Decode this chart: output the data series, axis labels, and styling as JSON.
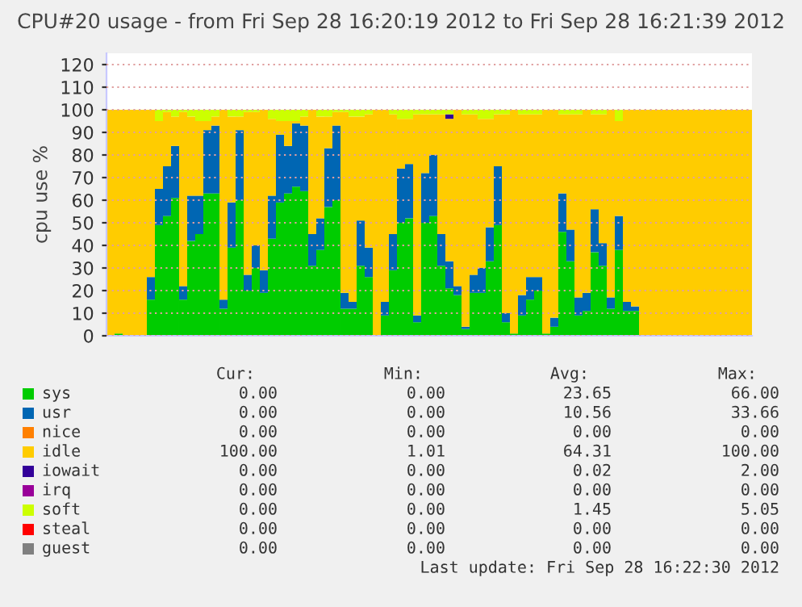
{
  "chart_data": {
    "type": "bar",
    "stacked": true,
    "title": "CPU#20 usage - from Fri Sep 28 16:20:19 2012 to Fri Sep 28 16:21:39 2012",
    "ylabel": "cpu use %",
    "categories": [
      null,
      null,
      null,
      null,
      null,
      null,
      null,
      null,
      null,
      null,
      null,
      null,
      null,
      null,
      null,
      null,
      null,
      null,
      null,
      null,
      null,
      null,
      null,
      null,
      null,
      null,
      null,
      null,
      null,
      null,
      null,
      null,
      null,
      null,
      null,
      null,
      null,
      null,
      null,
      null,
      null,
      null,
      null,
      null,
      null,
      null,
      null,
      null,
      null,
      null,
      null,
      null,
      null,
      null,
      null,
      null,
      null,
      null,
      null,
      null,
      null,
      null,
      null,
      null,
      null,
      null,
      null,
      null,
      null,
      null,
      null,
      null,
      null,
      null,
      null,
      null,
      null,
      null,
      null,
      null
    ],
    "series": [
      {
        "name": "sys",
        "color": "#00cc00",
        "values": [
          0,
          1,
          0,
          0,
          0,
          16,
          49,
          53,
          61,
          16,
          42,
          45,
          63,
          63,
          12,
          39,
          60,
          20,
          30,
          19,
          43,
          59,
          63,
          66,
          64,
          31,
          38,
          57,
          60,
          12,
          12,
          31,
          26,
          0,
          9,
          29,
          50,
          52,
          6,
          50,
          53,
          31,
          21,
          18,
          3,
          19,
          19,
          33,
          49,
          6,
          1,
          9,
          16,
          20,
          1,
          4,
          46,
          33,
          9,
          11,
          37,
          31,
          12,
          38,
          11,
          11,
          0,
          0,
          0,
          0,
          0,
          0,
          0,
          0,
          0,
          0,
          0,
          0,
          0,
          0
        ]
      },
      {
        "name": "usr",
        "color": "#0066b3",
        "values": [
          0,
          0,
          0,
          0,
          0,
          10,
          16,
          22,
          23,
          6,
          20,
          17,
          28,
          30,
          4,
          20,
          31,
          7,
          10,
          10,
          19,
          30,
          21,
          28,
          29,
          14,
          14,
          26,
          33,
          7,
          3,
          20,
          13,
          0,
          6,
          16,
          24,
          24,
          3,
          22,
          27,
          14,
          12,
          4,
          1,
          8,
          11,
          15,
          26,
          4,
          0,
          9,
          10,
          6,
          0,
          4,
          17,
          14,
          8,
          8,
          19,
          10,
          5,
          15,
          4,
          2,
          0,
          0,
          0,
          0,
          0,
          0,
          0,
          0,
          0,
          0,
          0,
          0,
          0,
          0
        ]
      },
      {
        "name": "nice",
        "color": "#ff8000",
        "values": [
          0,
          0,
          0,
          0,
          0,
          0,
          0,
          0,
          0,
          0,
          0,
          0,
          0,
          0,
          0,
          0,
          0,
          0,
          0,
          0,
          0,
          0,
          0,
          0,
          0,
          0,
          0,
          0,
          0,
          0,
          0,
          0,
          0,
          0,
          0,
          0,
          0,
          0,
          0,
          0,
          0,
          0,
          0,
          0,
          0,
          0,
          0,
          0,
          0,
          0,
          0,
          0,
          0,
          0,
          0,
          0,
          0,
          0,
          0,
          0,
          0,
          0,
          0,
          0,
          0,
          0,
          0,
          0,
          0,
          0,
          0,
          0,
          0,
          0,
          0,
          0,
          0,
          0,
          0,
          0
        ]
      },
      {
        "name": "idle",
        "color": "#ffcc00",
        "values": [
          100,
          99,
          100,
          100,
          100,
          74,
          30,
          24,
          13,
          77,
          35,
          33,
          4,
          4,
          84,
          38,
          6,
          72,
          59,
          71,
          34,
          6,
          11,
          1,
          4,
          55,
          45,
          14,
          6,
          80,
          82,
          46,
          59,
          100,
          85,
          53,
          22,
          20,
          89,
          26,
          18,
          53,
          63,
          78,
          94,
          71,
          66,
          48,
          23,
          88,
          99,
          80,
          72,
          72,
          99,
          92,
          35,
          51,
          81,
          81,
          42,
          57,
          83,
          42,
          85,
          87,
          100,
          100,
          100,
          100,
          100,
          100,
          100,
          100,
          100,
          100,
          100,
          100,
          100,
          100
        ]
      },
      {
        "name": "iowait",
        "color": "#330099",
        "values": [
          0,
          0,
          0,
          0,
          0,
          0,
          0,
          0,
          0,
          0,
          0,
          0,
          0,
          0,
          0,
          0,
          0,
          0,
          0,
          0,
          0,
          0,
          0,
          0,
          0,
          0,
          0,
          0,
          0,
          0,
          0,
          0,
          0,
          0,
          0,
          0,
          0,
          0,
          0,
          0,
          0,
          0,
          2,
          0,
          0,
          0,
          0,
          0,
          0,
          0,
          0,
          0,
          0,
          0,
          0,
          0,
          0,
          0,
          0,
          0,
          0,
          0,
          0,
          0,
          0,
          0,
          0,
          0,
          0,
          0,
          0,
          0,
          0,
          0,
          0,
          0,
          0,
          0,
          0,
          0
        ]
      },
      {
        "name": "irq",
        "color": "#990099",
        "values": [
          0,
          0,
          0,
          0,
          0,
          0,
          0,
          0,
          0,
          0,
          0,
          0,
          0,
          0,
          0,
          0,
          0,
          0,
          0,
          0,
          0,
          0,
          0,
          0,
          0,
          0,
          0,
          0,
          0,
          0,
          0,
          0,
          0,
          0,
          0,
          0,
          0,
          0,
          0,
          0,
          0,
          0,
          0,
          0,
          0,
          0,
          0,
          0,
          0,
          0,
          0,
          0,
          0,
          0,
          0,
          0,
          0,
          0,
          0,
          0,
          0,
          0,
          0,
          0,
          0,
          0,
          0,
          0,
          0,
          0,
          0,
          0,
          0,
          0,
          0,
          0,
          0,
          0,
          0,
          0
        ]
      },
      {
        "name": "soft",
        "color": "#ccff00",
        "values": [
          0,
          0,
          0,
          0,
          0,
          0,
          5,
          1,
          3,
          1,
          3,
          5,
          5,
          3,
          0,
          3,
          3,
          1,
          1,
          0,
          4,
          5,
          5,
          5,
          3,
          0,
          3,
          3,
          1,
          1,
          3,
          3,
          2,
          0,
          0,
          2,
          4,
          4,
          2,
          2,
          2,
          2,
          2,
          0,
          2,
          2,
          4,
          4,
          2,
          2,
          0,
          2,
          2,
          2,
          0,
          0,
          2,
          2,
          2,
          0,
          2,
          2,
          0,
          5,
          0,
          0,
          0,
          0,
          0,
          0,
          0,
          0,
          0,
          0,
          0,
          0,
          0,
          0,
          0,
          0
        ]
      },
      {
        "name": "steal",
        "color": "#ff0000",
        "values": [
          0,
          0,
          0,
          0,
          0,
          0,
          0,
          0,
          0,
          0,
          0,
          0,
          0,
          0,
          0,
          0,
          0,
          0,
          0,
          0,
          0,
          0,
          0,
          0,
          0,
          0,
          0,
          0,
          0,
          0,
          0,
          0,
          0,
          0,
          0,
          0,
          0,
          0,
          0,
          0,
          0,
          0,
          0,
          0,
          0,
          0,
          0,
          0,
          0,
          0,
          0,
          0,
          0,
          0,
          0,
          0,
          0,
          0,
          0,
          0,
          0,
          0,
          0,
          0,
          0,
          0,
          0,
          0,
          0,
          0,
          0,
          0,
          0,
          0,
          0,
          0,
          0,
          0,
          0,
          0
        ]
      },
      {
        "name": "guest",
        "color": "#808080",
        "values": [
          0,
          0,
          0,
          0,
          0,
          0,
          0,
          0,
          0,
          0,
          0,
          0,
          0,
          0,
          0,
          0,
          0,
          0,
          0,
          0,
          0,
          0,
          0,
          0,
          0,
          0,
          0,
          0,
          0,
          0,
          0,
          0,
          0,
          0,
          0,
          0,
          0,
          0,
          0,
          0,
          0,
          0,
          0,
          0,
          0,
          0,
          0,
          0,
          0,
          0,
          0,
          0,
          0,
          0,
          0,
          0,
          0,
          0,
          0,
          0,
          0,
          0,
          0,
          0,
          0,
          0,
          0,
          0,
          0,
          0,
          0,
          0,
          0,
          0,
          0,
          0,
          0,
          0,
          0,
          0
        ]
      }
    ],
    "ylim": [
      0,
      125
    ],
    "yticks": [
      0,
      10,
      20,
      30,
      40,
      50,
      60,
      70,
      80,
      90,
      100,
      110,
      120
    ],
    "grid": "y",
    "legend": "bottom",
    "tick_labels": "y",
    "annotations": [
      "Cur:",
      "Min:",
      "Avg:",
      "Max:",
      "0.00",
      "0.00",
      "23.65",
      "66.00",
      "0.00",
      "0.00",
      "10.56",
      "33.66",
      "0.00",
      "0.00",
      "0.00",
      "0.00",
      "100.00",
      "1.01",
      "64.31",
      "100.00",
      "0.00",
      "0.00",
      "0.02",
      "2.00",
      "0.00",
      "0.00",
      "0.00",
      "0.00",
      "0.00",
      "0.00",
      "1.45",
      "5.05",
      "0.00",
      "0.00",
      "0.00",
      "0.00",
      "0.00",
      "0.00",
      "0.00",
      "0.00",
      "Last update: Fri Sep 28 16:22:30 2012"
    ]
  }
}
